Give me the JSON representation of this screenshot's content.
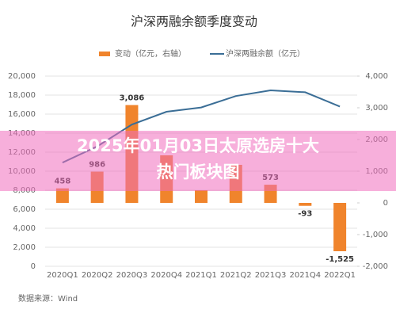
{
  "chart_data": {
    "type": "bar-line",
    "title": "沪深两融余额季度变动",
    "categories": [
      "2020Q1",
      "2020Q2",
      "2020Q3",
      "2020Q4",
      "2021Q1",
      "2021Q2",
      "2021Q3",
      "2021Q4",
      "2022Q1"
    ],
    "series": [
      {
        "name": "变动（亿元，右轴）",
        "type": "bar",
        "axis": "y2",
        "color": "#f0842c",
        "values": [
          458,
          986,
          3086,
          1500,
          400,
          1200,
          573,
          -93,
          -1525
        ],
        "value_labels": [
          "458",
          "986",
          "3,086",
          null,
          null,
          null,
          "573",
          "-93",
          "-1,525"
        ]
      },
      {
        "name": "沪深两融余额（亿元）",
        "type": "line",
        "color": "#3b6e96",
        "values": [
          10900,
          12600,
          14900,
          16250,
          16700,
          17900,
          18500,
          18300,
          16800
        ]
      }
    ],
    "ylim": [
      0,
      20000
    ],
    "yticks": [
      0,
      {
        "value": 2000,
        "label": "2,000"
      },
      {
        "value": 4000,
        "label": "4,000"
      },
      {
        "value": 6000,
        "label": "6,000"
      },
      {
        "value": 8000,
        "label": "8,000"
      },
      {
        "value": 10000,
        "label": "10,000"
      },
      {
        "value": 12000,
        "label": "12,000"
      },
      {
        "value": 14000,
        "label": "14,000"
      },
      {
        "value": 16000,
        "label": "16,000"
      },
      {
        "value": 18000,
        "label": "18,000"
      },
      {
        "value": 20000,
        "label": "20,000"
      }
    ],
    "y2lim": [
      -2000,
      4000
    ],
    "y2ticks": [
      {
        "value": -2000,
        "label": "-2,000"
      },
      {
        "value": -1000,
        "label": "-1,000"
      },
      0,
      {
        "value": 1000,
        "label": "1,000"
      },
      {
        "value": 2000,
        "label": "2,000"
      },
      {
        "value": 3000,
        "label": "3,000"
      },
      {
        "value": 4000,
        "label": "4,000"
      }
    ],
    "grid": true,
    "source": "数据来源：Wind"
  },
  "overlay": {
    "lines": [
      "2025年01月03日太原选房十大",
      "热门板块图"
    ]
  }
}
